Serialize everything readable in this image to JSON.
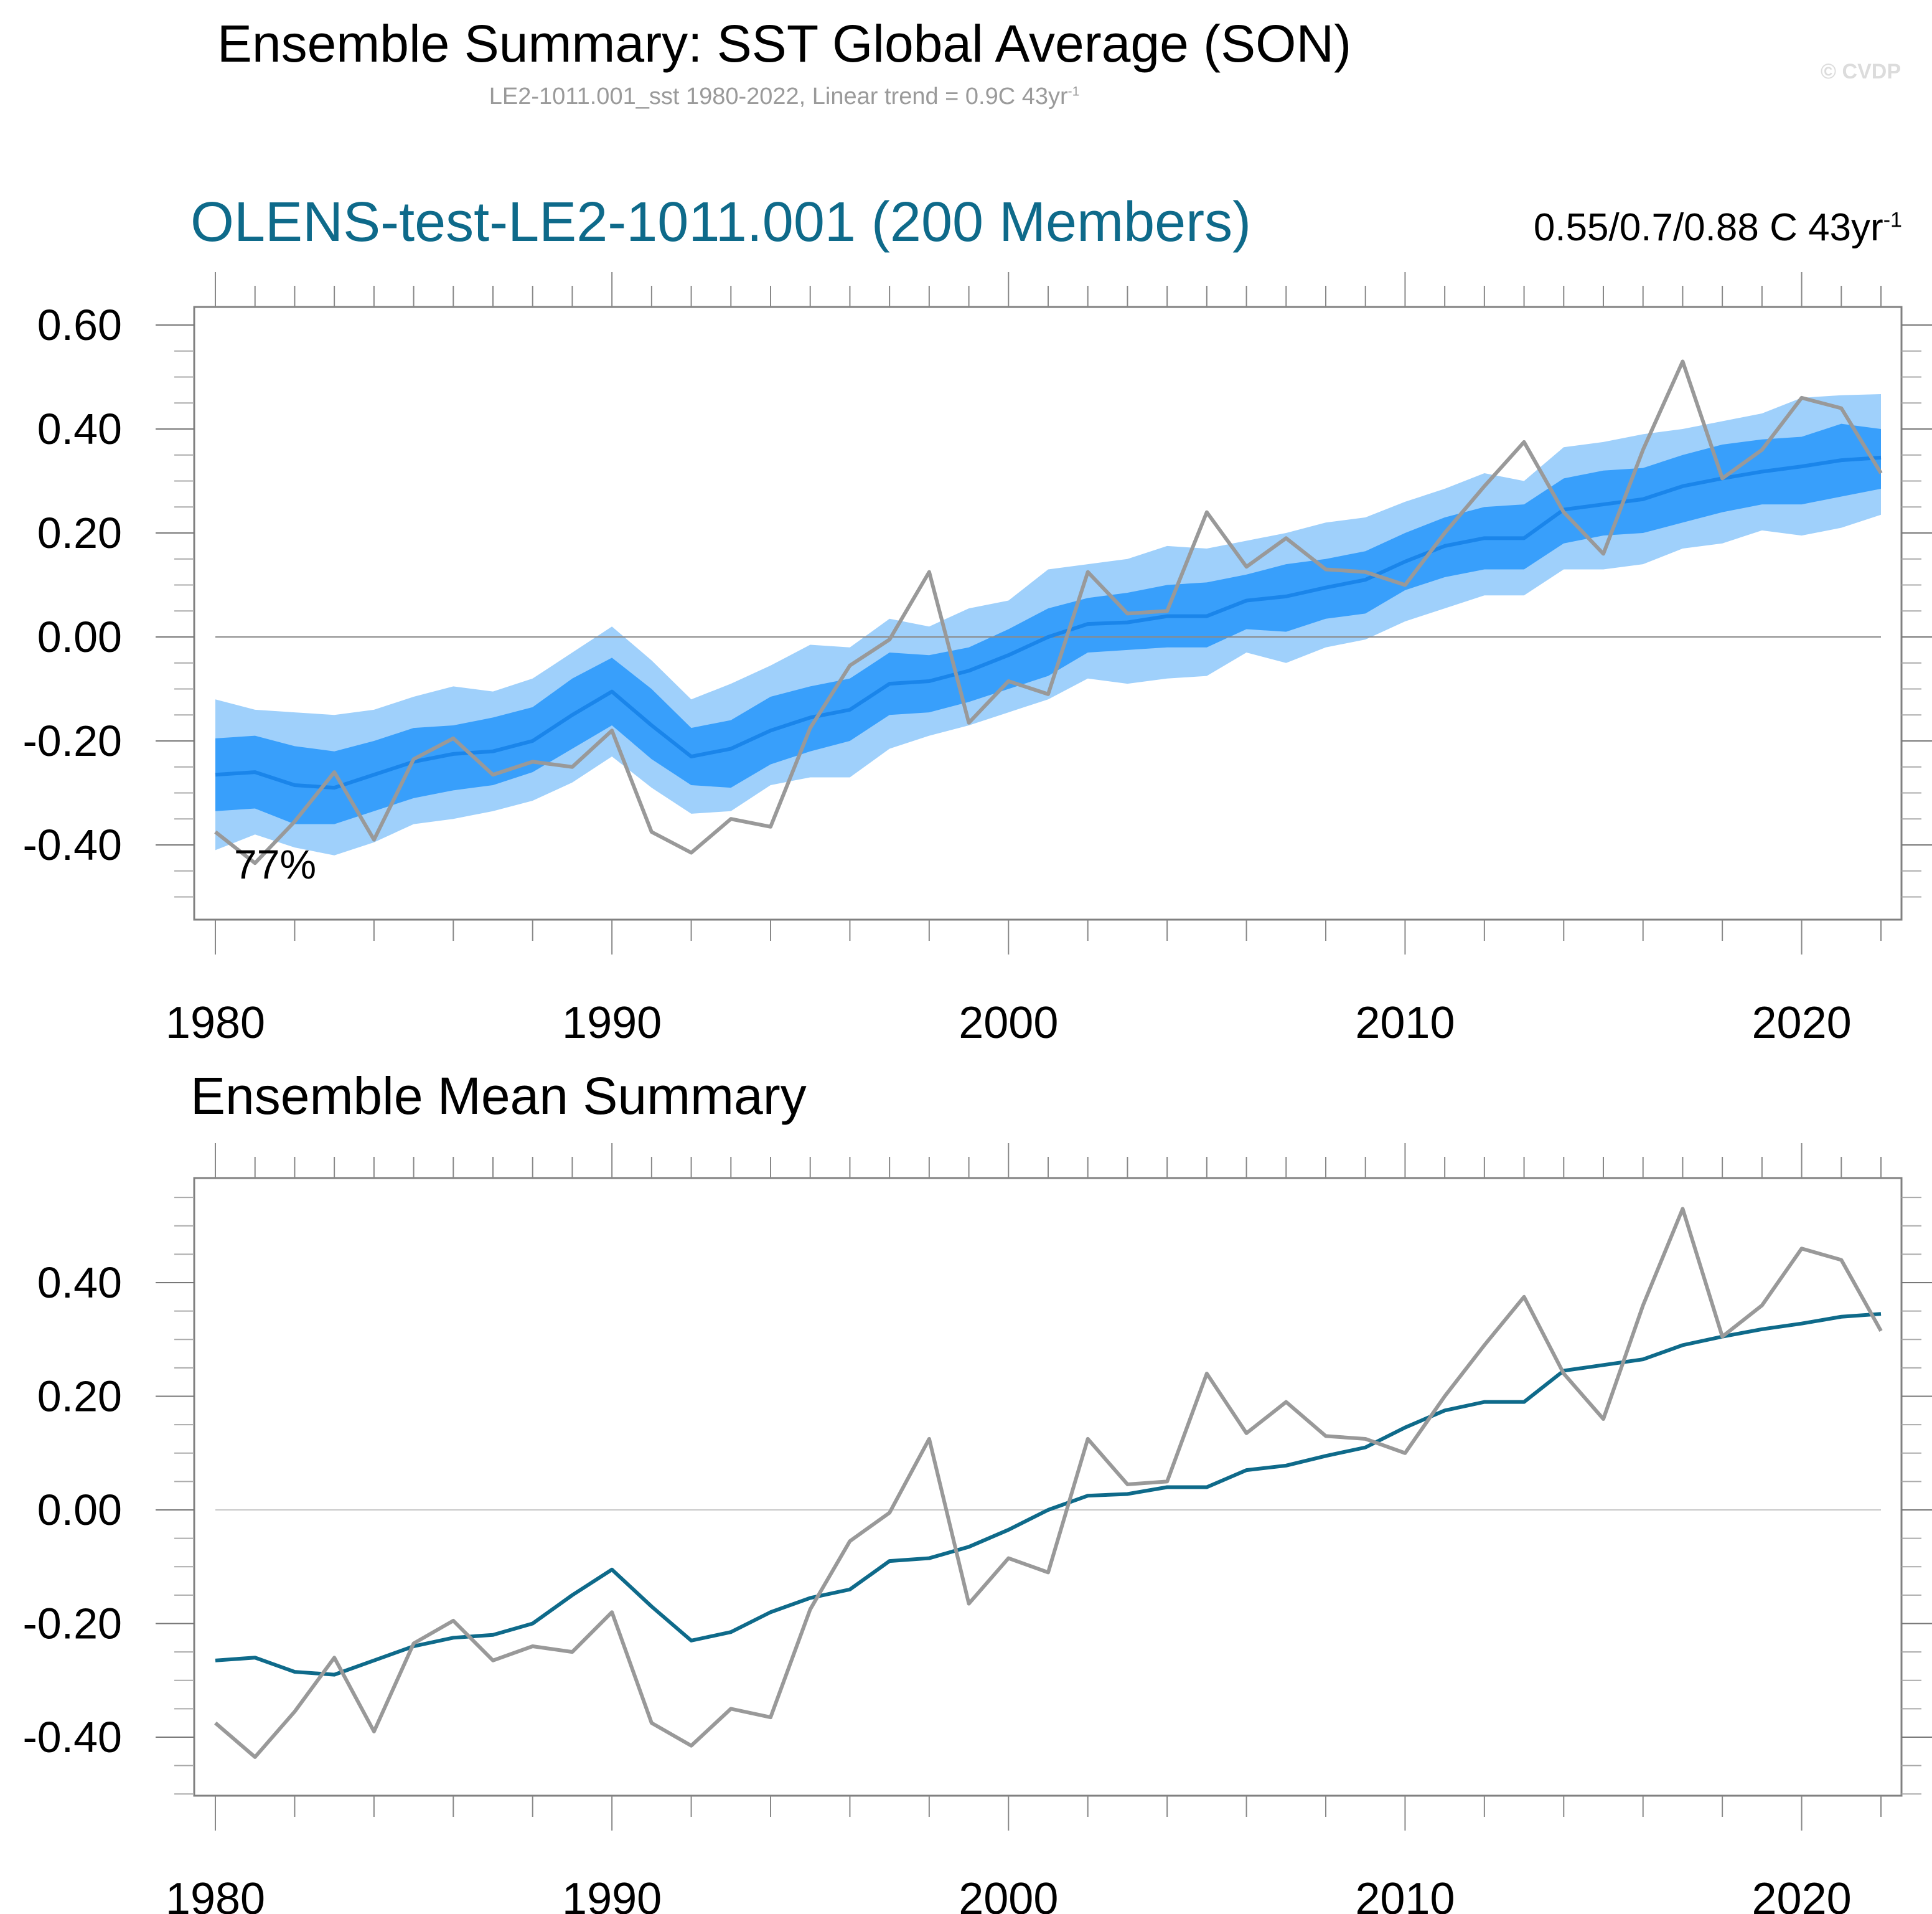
{
  "header": {
    "title": "Ensemble Summary: SST Global Average (SON)",
    "subtitle": "LE2-1011.001_sst 1980-2022, Linear trend = 0.9C 43yr",
    "subtitle_sup": "-1",
    "watermark": "© CVDP"
  },
  "panels": {
    "top": {
      "title": "OLENS-test-LE2-1011.001 (200 Members)",
      "trend_text": "0.55/0.7/0.88 C 43yr",
      "trend_sup": "-1",
      "annotation": "77%"
    },
    "bottom": {
      "title": "Ensemble Mean Summary"
    }
  },
  "colors": {
    "outer_band": "#9fd0fb",
    "inner_band": "#389ffb",
    "ensemble_mean_top": "#1a85ea",
    "ensemble_mean_bottom": "#0e6a8a",
    "observed": "#999999",
    "title_accent": "#0e6a8a"
  },
  "chart_data": [
    {
      "type": "area",
      "title": "OLENS-test-LE2-1011.001 (200 Members)",
      "xlabel": "",
      "ylabel": "",
      "x": [
        1980,
        1981,
        1982,
        1983,
        1984,
        1985,
        1986,
        1987,
        1988,
        1989,
        1990,
        1991,
        1992,
        1993,
        1994,
        1995,
        1996,
        1997,
        1998,
        1999,
        2000,
        2001,
        2002,
        2003,
        2004,
        2005,
        2006,
        2007,
        2008,
        2009,
        2010,
        2011,
        2012,
        2013,
        2014,
        2015,
        2016,
        2017,
        2018,
        2019,
        2020,
        2021,
        2022
      ],
      "xticks": [
        "1980",
        "1990",
        "2000",
        "2010",
        "2020"
      ],
      "yticks": [
        "0.60",
        "0.40",
        "0.20",
        "0.00",
        "-0.20",
        "-0.40"
      ],
      "xlim": [
        1979.5,
        2022.5
      ],
      "ylim": [
        -0.54,
        0.66
      ],
      "grid": false,
      "reference_line": 0,
      "annotation": "77%",
      "series": [
        {
          "name": "outer_upper",
          "values": [
            -0.12,
            -0.14,
            -0.145,
            -0.15,
            -0.14,
            -0.115,
            -0.095,
            -0.105,
            -0.08,
            -0.03,
            0.02,
            -0.045,
            -0.12,
            -0.09,
            -0.055,
            -0.015,
            -0.02,
            0.035,
            0.02,
            0.055,
            0.07,
            0.13,
            0.14,
            0.15,
            0.175,
            0.17,
            0.185,
            0.2,
            0.22,
            0.23,
            0.26,
            0.285,
            0.315,
            0.3,
            0.365,
            0.375,
            0.39,
            0.4,
            0.415,
            0.43,
            0.46,
            0.465,
            0.467
          ]
        },
        {
          "name": "inner_upper",
          "values": [
            -0.195,
            -0.19,
            -0.21,
            -0.22,
            -0.2,
            -0.175,
            -0.17,
            -0.155,
            -0.135,
            -0.08,
            -0.04,
            -0.1,
            -0.175,
            -0.16,
            -0.115,
            -0.095,
            -0.08,
            -0.03,
            -0.035,
            -0.02,
            0.015,
            0.055,
            0.075,
            0.085,
            0.1,
            0.105,
            0.12,
            0.14,
            0.15,
            0.165,
            0.2,
            0.23,
            0.25,
            0.255,
            0.305,
            0.32,
            0.325,
            0.35,
            0.37,
            0.38,
            0.385,
            0.41,
            0.4
          ]
        },
        {
          "name": "inner_lower",
          "values": [
            -0.335,
            -0.33,
            -0.36,
            -0.36,
            -0.335,
            -0.31,
            -0.295,
            -0.285,
            -0.26,
            -0.215,
            -0.17,
            -0.235,
            -0.285,
            -0.29,
            -0.245,
            -0.22,
            -0.2,
            -0.15,
            -0.145,
            -0.125,
            -0.1,
            -0.075,
            -0.03,
            -0.025,
            -0.02,
            -0.02,
            0.015,
            0.01,
            0.035,
            0.045,
            0.09,
            0.115,
            0.13,
            0.13,
            0.18,
            0.195,
            0.2,
            0.22,
            0.24,
            0.255,
            0.255,
            0.27,
            0.285
          ]
        },
        {
          "name": "outer_lower",
          "values": [
            -0.41,
            -0.38,
            -0.405,
            -0.42,
            -0.395,
            -0.36,
            -0.35,
            -0.335,
            -0.315,
            -0.28,
            -0.23,
            -0.29,
            -0.34,
            -0.335,
            -0.285,
            -0.27,
            -0.27,
            -0.215,
            -0.19,
            -0.17,
            -0.145,
            -0.12,
            -0.08,
            -0.09,
            -0.08,
            -0.075,
            -0.03,
            -0.05,
            -0.02,
            -0.005,
            0.03,
            0.055,
            0.08,
            0.08,
            0.13,
            0.13,
            0.14,
            0.17,
            0.18,
            0.205,
            0.195,
            0.21,
            0.235
          ]
        },
        {
          "name": "ensemble_mean",
          "values": [
            -0.265,
            -0.26,
            -0.285,
            -0.29,
            -0.265,
            -0.24,
            -0.225,
            -0.22,
            -0.2,
            -0.15,
            -0.105,
            -0.17,
            -0.23,
            -0.215,
            -0.18,
            -0.155,
            -0.14,
            -0.09,
            -0.085,
            -0.065,
            -0.035,
            0.0,
            0.025,
            0.028,
            0.04,
            0.04,
            0.07,
            0.078,
            0.095,
            0.11,
            0.145,
            0.175,
            0.19,
            0.19,
            0.245,
            0.255,
            0.265,
            0.29,
            0.305,
            0.318,
            0.328,
            0.34,
            0.345
          ]
        },
        {
          "name": "observed",
          "values": [
            -0.375,
            -0.435,
            -0.355,
            -0.26,
            -0.39,
            -0.235,
            -0.195,
            -0.265,
            -0.24,
            -0.25,
            -0.18,
            -0.375,
            -0.415,
            -0.35,
            -0.365,
            -0.175,
            -0.055,
            -0.005,
            0.125,
            -0.165,
            -0.085,
            -0.11,
            0.125,
            0.045,
            0.05,
            0.24,
            0.135,
            0.19,
            0.13,
            0.125,
            0.1,
            0.2,
            0.29,
            0.375,
            0.24,
            0.16,
            0.36,
            0.53,
            0.305,
            0.36,
            0.46,
            0.44,
            0.315
          ]
        }
      ]
    },
    {
      "type": "line",
      "title": "Ensemble Mean Summary",
      "xlabel": "",
      "ylabel": "",
      "x": [
        1980,
        1981,
        1982,
        1983,
        1984,
        1985,
        1986,
        1987,
        1988,
        1989,
        1990,
        1991,
        1992,
        1993,
        1994,
        1995,
        1996,
        1997,
        1998,
        1999,
        2000,
        2001,
        2002,
        2003,
        2004,
        2005,
        2006,
        2007,
        2008,
        2009,
        2010,
        2011,
        2012,
        2013,
        2014,
        2015,
        2016,
        2017,
        2018,
        2019,
        2020,
        2021,
        2022
      ],
      "xticks": [
        "1980",
        "1990",
        "2000",
        "2010",
        "2020"
      ],
      "yticks": [
        "0.40",
        "0.20",
        "0.00",
        "-0.20",
        "-0.40"
      ],
      "xlim": [
        1979.5,
        2022.5
      ],
      "ylim": [
        -0.49,
        0.58
      ],
      "grid": false,
      "reference_line": 0,
      "series": [
        {
          "name": "ensemble_mean",
          "values": [
            -0.265,
            -0.26,
            -0.285,
            -0.29,
            -0.265,
            -0.24,
            -0.225,
            -0.22,
            -0.2,
            -0.15,
            -0.105,
            -0.17,
            -0.23,
            -0.215,
            -0.18,
            -0.155,
            -0.14,
            -0.09,
            -0.085,
            -0.065,
            -0.035,
            0.0,
            0.025,
            0.028,
            0.04,
            0.04,
            0.07,
            0.078,
            0.095,
            0.11,
            0.145,
            0.175,
            0.19,
            0.19,
            0.245,
            0.255,
            0.265,
            0.29,
            0.305,
            0.318,
            0.328,
            0.34,
            0.345
          ]
        },
        {
          "name": "observed",
          "values": [
            -0.375,
            -0.435,
            -0.355,
            -0.26,
            -0.39,
            -0.235,
            -0.195,
            -0.265,
            -0.24,
            -0.25,
            -0.18,
            -0.375,
            -0.415,
            -0.35,
            -0.365,
            -0.175,
            -0.055,
            -0.005,
            0.125,
            -0.165,
            -0.085,
            -0.11,
            0.125,
            0.045,
            0.05,
            0.24,
            0.135,
            0.19,
            0.13,
            0.125,
            0.1,
            0.2,
            0.29,
            0.375,
            0.24,
            0.16,
            0.36,
            0.53,
            0.305,
            0.36,
            0.46,
            0.44,
            0.315
          ]
        }
      ]
    }
  ]
}
